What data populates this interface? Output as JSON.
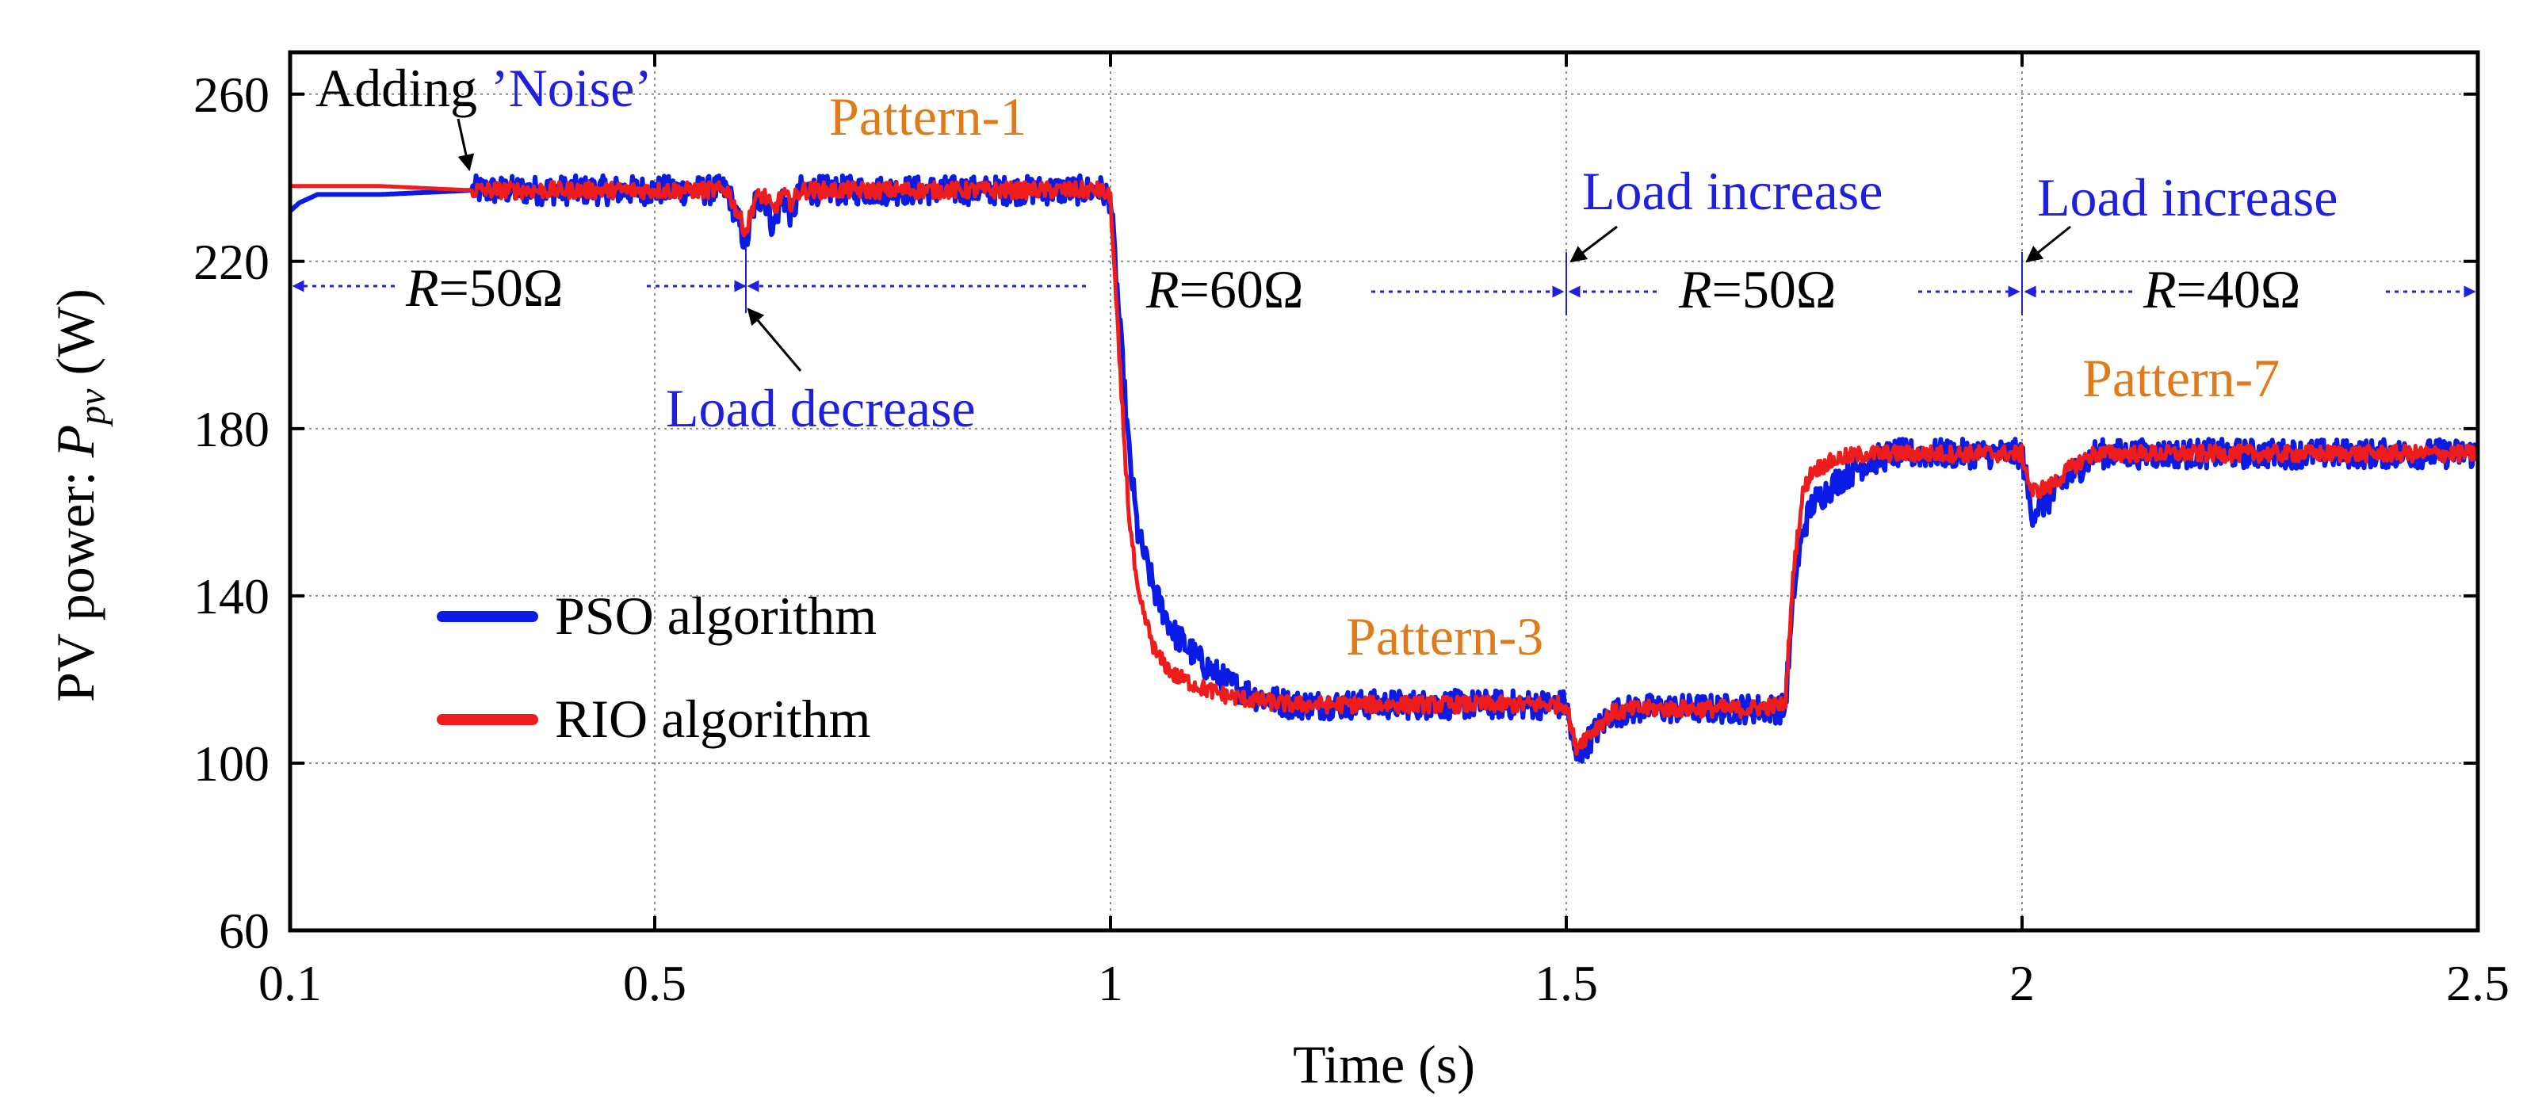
{
  "chart_data": {
    "type": "line",
    "title": "",
    "xlabel": "Time (s)",
    "ylabel_prefix": "PV power: ",
    "ylabel_var": "P",
    "ylabel_sub": "pv",
    "ylabel_unit": " (W)",
    "xlim": [
      0.1,
      2.5
    ],
    "ylim": [
      60,
      270
    ],
    "xticks": [
      0.1,
      0.5,
      1,
      1.5,
      2,
      2.5
    ],
    "xtick_labels": [
      "0.1",
      "0.5",
      "1",
      "1.5",
      "2",
      "2.5"
    ],
    "yticks": [
      60,
      100,
      140,
      180,
      220,
      260
    ],
    "ytick_labels": [
      "60",
      "100",
      "140",
      "180",
      "220",
      "260"
    ],
    "grid": true,
    "legend_position": "lower-left",
    "colors": {
      "pso": "#0a1be6",
      "rio": "#ee1c1c",
      "pattern": "#e07b1a",
      "event": "#1f1fdc",
      "arrow": "#000000"
    },
    "series": [
      {
        "name": "PSO algorithm",
        "legend_label": "PSO algorithm",
        "noise_amp": 3.5,
        "x": [
          0.1,
          0.11,
          0.13,
          0.2,
          0.3,
          0.4,
          0.58,
          0.6,
          0.61,
          0.62,
          0.63,
          0.64,
          0.65,
          0.66,
          0.67,
          0.7,
          0.8,
          0.9,
          0.99,
          1.0,
          1.01,
          1.02,
          1.03,
          1.05,
          1.07,
          1.1,
          1.13,
          1.16,
          1.2,
          1.3,
          1.4,
          1.5,
          1.51,
          1.53,
          1.55,
          1.58,
          1.6,
          1.7,
          1.74,
          1.75,
          1.76,
          1.77,
          1.8,
          1.83,
          1.86,
          1.9,
          2.0,
          2.01,
          2.03,
          2.05,
          2.07,
          2.08,
          2.2,
          2.4,
          2.5
        ],
        "y": [
          232,
          234,
          236,
          236,
          237,
          237,
          237,
          224,
          234,
          236,
          228,
          236,
          231,
          237,
          237,
          237,
          237,
          237,
          237,
          235,
          205,
          175,
          155,
          140,
          131,
          124,
          119,
          116,
          114,
          114,
          114,
          114,
          101,
          107,
          112,
          113,
          113,
          113,
          113,
          142,
          156,
          162,
          168,
          172,
          174,
          174,
          174,
          160,
          163,
          168,
          172,
          174,
          174,
          174,
          174
        ]
      },
      {
        "name": "RIO algorithm",
        "legend_label": "RIO algorithm",
        "noise_amp": 2.0,
        "x": [
          0.1,
          0.2,
          0.3,
          0.4,
          0.58,
          0.6,
          0.61,
          0.62,
          0.63,
          0.64,
          0.65,
          0.66,
          0.7,
          0.8,
          0.9,
          0.99,
          1.0,
          1.01,
          1.02,
          1.03,
          1.05,
          1.07,
          1.1,
          1.13,
          1.16,
          1.2,
          1.3,
          1.4,
          1.5,
          1.51,
          1.53,
          1.55,
          1.58,
          1.6,
          1.7,
          1.74,
          1.75,
          1.76,
          1.77,
          1.8,
          1.83,
          1.86,
          1.9,
          2.0,
          2.01,
          2.03,
          2.05,
          2.07,
          2.08,
          2.2,
          2.4,
          2.5
        ],
        "y": [
          238,
          238,
          237,
          237,
          237,
          227,
          235,
          236,
          232,
          236,
          234,
          237,
          237,
          237,
          237,
          237,
          235,
          195,
          160,
          140,
          126,
          121,
          118,
          116,
          115,
          114,
          114,
          114,
          114,
          104,
          108,
          112,
          113,
          113,
          113,
          114,
          148,
          165,
          170,
          173,
          174,
          174,
          174,
          174,
          165,
          166,
          170,
          173,
          174,
          174,
          174,
          174
        ]
      }
    ],
    "annotations": {
      "adding": "Adding ",
      "noise": "’Noise’",
      "pattern1": "Pattern-1",
      "pattern3": "Pattern-3",
      "pattern7": "Pattern-7",
      "load_decrease": "Load decrease",
      "load_increase_1": "Load increase",
      "load_increase_2": "Load increase",
      "r_var": "R",
      "r1": "=50Ω",
      "r2": "=60Ω",
      "r3": "=50Ω",
      "r4": "=40Ω"
    }
  }
}
